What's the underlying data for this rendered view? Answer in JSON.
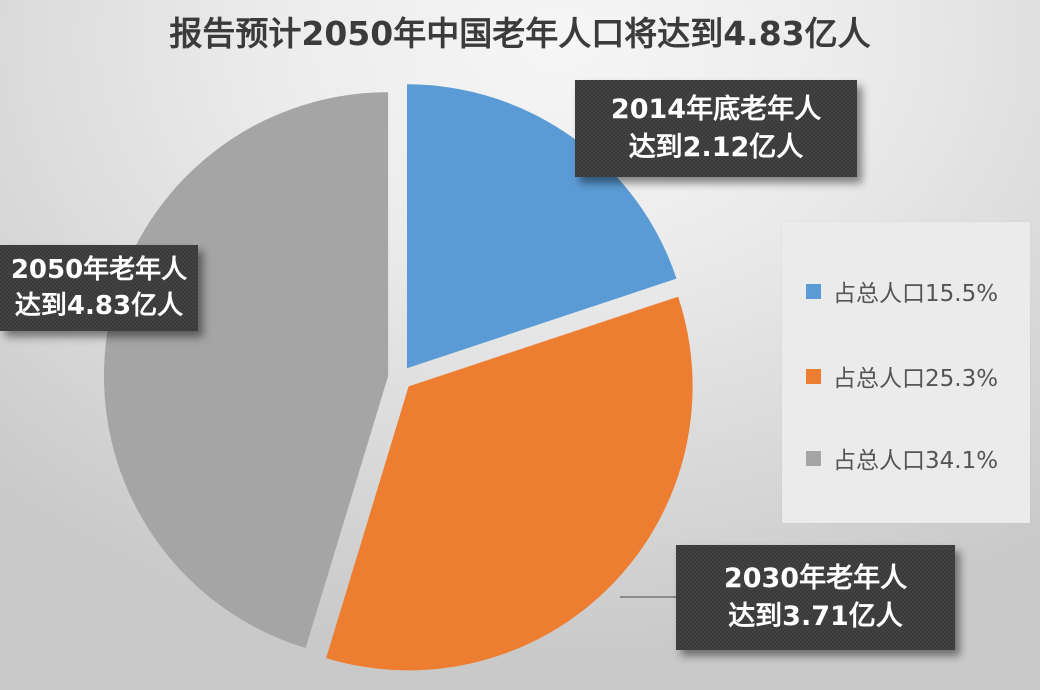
{
  "title": "报告预计2050年中国老年人口将达到4.83亿人",
  "colors": {
    "blue": "#5b9bd5",
    "orange": "#ed7d31",
    "gray": "#a5a5a5",
    "callout_bg": "#3a3a3a",
    "callout_text": "#ffffff",
    "legend_bg": "#ebebeb",
    "title_text": "#3b3b3b"
  },
  "callouts": {
    "c2014": {
      "line1": "2014年底老年人",
      "line2": "达到2.12亿人"
    },
    "c2030": {
      "line1": "2030年老年人",
      "line2": "达到3.71亿人"
    },
    "c2050": {
      "line1": "2050年老年人",
      "line2": "达到4.83亿人"
    }
  },
  "legend": {
    "items": [
      {
        "label": "占总人口15.5%",
        "color": "#5b9bd5"
      },
      {
        "label": "占总人口25.3%",
        "color": "#ed7d31"
      },
      {
        "label": "占总人口34.1%",
        "color": "#a5a5a5"
      }
    ]
  },
  "chart_data": {
    "type": "pie",
    "title": "报告预计2050年中国老年人口将达到4.83亿人",
    "categories": [
      "2014年底",
      "2030年",
      "2050年"
    ],
    "values": [
      2.12,
      3.71,
      4.83
    ],
    "unit": "亿人",
    "share_of_total_population_pct": [
      15.5,
      25.3,
      34.1
    ],
    "labels": [
      "2014年底老年人达到2.12亿人",
      "2030年老年人达到3.71亿人",
      "2050年老年人达到4.83亿人"
    ],
    "legend": [
      "占总人口15.5%",
      "占总人口25.3%",
      "占总人口34.1%"
    ],
    "legend_position": "right",
    "colors": [
      "#5b9bd5",
      "#ed7d31",
      "#a5a5a5"
    ],
    "exploded": true,
    "start_angle_deg": 0,
    "direction": "clockwise"
  }
}
